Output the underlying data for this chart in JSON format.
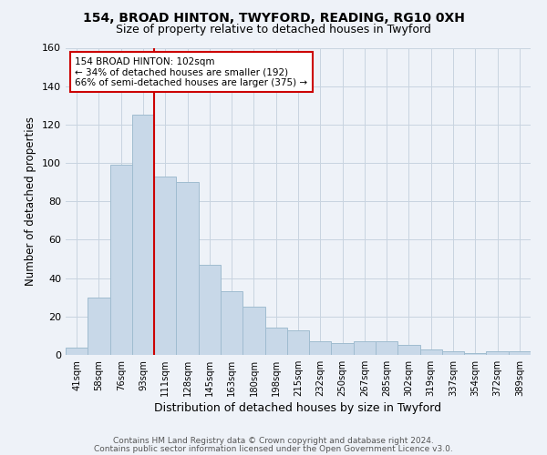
{
  "title1": "154, BROAD HINTON, TWYFORD, READING, RG10 0XH",
  "title2": "Size of property relative to detached houses in Twyford",
  "xlabel": "Distribution of detached houses by size in Twyford",
  "ylabel": "Number of detached properties",
  "categories": [
    "41sqm",
    "58sqm",
    "76sqm",
    "93sqm",
    "111sqm",
    "128sqm",
    "145sqm",
    "163sqm",
    "180sqm",
    "198sqm",
    "215sqm",
    "232sqm",
    "250sqm",
    "267sqm",
    "285sqm",
    "302sqm",
    "319sqm",
    "337sqm",
    "354sqm",
    "372sqm",
    "389sqm"
  ],
  "values": [
    4,
    30,
    99,
    125,
    93,
    90,
    47,
    33,
    25,
    14,
    13,
    7,
    6,
    7,
    7,
    5,
    3,
    2,
    1,
    2,
    2
  ],
  "bar_color": "#c8d8e8",
  "bar_edge_color": "#a0bcd0",
  "grid_color": "#c8d4e0",
  "background_color": "#eef2f8",
  "annotation_box_color": "#ffffff",
  "annotation_border_color": "#cc0000",
  "red_line_x": 3.5,
  "annotation_text_line1": "154 BROAD HINTON: 102sqm",
  "annotation_text_line2": "← 34% of detached houses are smaller (192)",
  "annotation_text_line3": "66% of semi-detached houses are larger (375) →",
  "footer1": "Contains HM Land Registry data © Crown copyright and database right 2024.",
  "footer2": "Contains public sector information licensed under the Open Government Licence v3.0.",
  "ylim": [
    0,
    160
  ],
  "yticks": [
    0,
    20,
    40,
    60,
    80,
    100,
    120,
    140,
    160
  ]
}
